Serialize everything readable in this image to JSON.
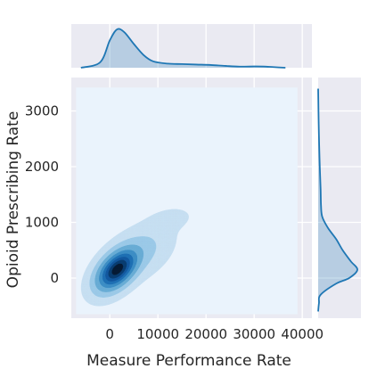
{
  "chart_data": {
    "type": "kde-jointplot",
    "title": "",
    "xlabel": "Measure Performance Rate",
    "ylabel": "Opioid Prescribing Rate",
    "xlim": [
      -8000,
      42000
    ],
    "ylim": [
      -720,
      3600
    ],
    "x_ticks": [
      0,
      10000,
      20000,
      30000,
      40000
    ],
    "y_ticks": [
      0,
      1000,
      2000,
      3000
    ],
    "x_tick_labels": [
      "0",
      "10000",
      "20000",
      "30000",
      "40000"
    ],
    "y_tick_labels": [
      "0",
      "1000",
      "2000",
      "3000"
    ],
    "grid": true,
    "kde_fill_extent": {
      "x": [
        -7000,
        39000
      ],
      "y": [
        -650,
        3420
      ]
    },
    "joint_kde": {
      "mode": {
        "x": 1500,
        "y": 150
      },
      "components": [
        {
          "mx": 1500,
          "my": 150,
          "sx": 2400,
          "sy": 210,
          "rho": 0.5,
          "w": 1.0
        },
        {
          "mx": 6000,
          "my": 450,
          "sx": 3500,
          "sy": 260,
          "rho": 0.45,
          "w": 0.1
        },
        {
          "mx": 12500,
          "my": 1050,
          "sx": 3000,
          "sy": 140,
          "rho": 0.3,
          "w": 0.018
        }
      ],
      "levels": [
        0.008,
        0.06,
        0.16,
        0.3,
        0.45,
        0.6,
        0.75,
        0.9
      ],
      "colors": [
        "#c7e0f2",
        "#9ccae8",
        "#6aaed6",
        "#3f8fc6",
        "#2171b5",
        "#155aa0",
        "#0b3f73",
        "#081d36"
      ]
    },
    "marginal_x": {
      "x": [
        -6000,
        -2000,
        0,
        1500,
        3000,
        5000,
        7000,
        9000,
        12000,
        15000,
        18000,
        21000,
        24000,
        27000,
        30000,
        32000,
        34000,
        36500
      ],
      "density": [
        0.0,
        0.06,
        0.3,
        0.42,
        0.39,
        0.26,
        0.14,
        0.07,
        0.045,
        0.04,
        0.035,
        0.03,
        0.02,
        0.012,
        0.014,
        0.013,
        0.007,
        0.0
      ]
    },
    "marginal_y": {
      "y": [
        -600,
        -450,
        -300,
        -100,
        0,
        150,
        300,
        500,
        700,
        900,
        1100,
        1300,
        1600,
        2000,
        2400,
        2800,
        3200,
        3400
      ],
      "density": [
        0.0,
        0.01,
        0.03,
        0.22,
        0.38,
        0.48,
        0.4,
        0.3,
        0.22,
        0.12,
        0.05,
        0.035,
        0.03,
        0.02,
        0.012,
        0.006,
        0.002,
        0.0
      ]
    },
    "colors": {
      "line": "#1f77b4",
      "marginal_fill": "#1f77b4",
      "axes_bg": "#eaeaf2",
      "grid": "#ffffff",
      "kde_background": "#eaf3fc"
    }
  }
}
